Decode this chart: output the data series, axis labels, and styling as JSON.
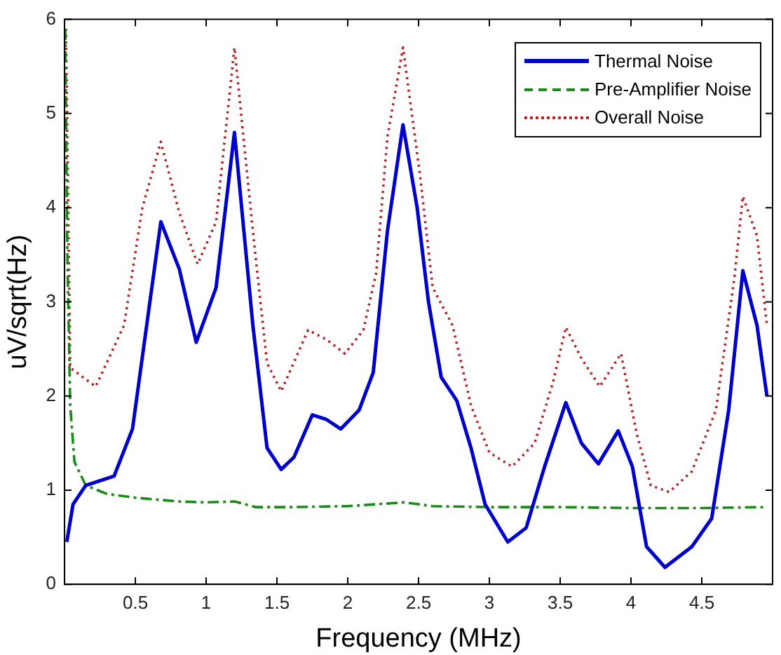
{
  "chart_data": {
    "type": "line",
    "xlabel": "Frequency (MHz)",
    "ylabel": "uV/sqrt(Hz)",
    "xlim": [
      0,
      5
    ],
    "xticks": [
      0.5,
      1,
      1.5,
      2,
      2.5,
      3,
      3.5,
      4,
      4.5
    ],
    "ylim": [
      0,
      6
    ],
    "yticks": [
      0,
      1,
      2,
      3,
      4,
      5,
      6
    ],
    "grid": false,
    "legend": "top right",
    "marker": "none",
    "series": [
      {
        "name": "Thermal Noise",
        "color": "#0000cc",
        "line_style": "solid",
        "x": [
          0.016,
          0.06,
          0.15,
          0.35,
          0.48,
          0.58,
          0.68,
          0.81,
          0.93,
          1.07,
          1.2,
          1.33,
          1.43,
          1.53,
          1.62,
          1.75,
          1.85,
          1.95,
          2.08,
          2.18,
          2.28,
          2.39,
          2.49,
          2.57,
          2.66,
          2.77,
          2.87,
          2.97,
          3.13,
          3.26,
          3.39,
          3.54,
          3.65,
          3.77,
          3.91,
          4.01,
          4.11,
          4.24,
          4.43,
          4.57,
          4.69,
          4.79,
          4.89,
          4.96
        ],
        "values": [
          0.45,
          0.85,
          1.05,
          1.15,
          1.65,
          2.75,
          3.85,
          3.35,
          2.57,
          3.15,
          4.8,
          2.75,
          1.45,
          1.22,
          1.35,
          1.8,
          1.75,
          1.65,
          1.85,
          2.25,
          3.75,
          4.88,
          4.0,
          3.0,
          2.2,
          1.95,
          1.45,
          0.85,
          0.45,
          0.6,
          1.25,
          1.93,
          1.5,
          1.28,
          1.63,
          1.25,
          0.4,
          0.18,
          0.4,
          0.7,
          1.85,
          3.33,
          2.75,
          2.0
        ]
      },
      {
        "name": "Pre-Amplifier Noise",
        "color": "#1a8a1a",
        "line_style": "dashed",
        "x": [
          0.005,
          0.02,
          0.04,
          0.07,
          0.15,
          0.3,
          0.5,
          0.8,
          1.0,
          1.2,
          1.35,
          1.6,
          2.0,
          2.4,
          2.6,
          3.0,
          3.5,
          4.0,
          4.5,
          4.96
        ],
        "values": [
          5.9,
          3.5,
          1.9,
          1.3,
          1.05,
          0.96,
          0.92,
          0.88,
          0.87,
          0.88,
          0.82,
          0.82,
          0.83,
          0.87,
          0.83,
          0.82,
          0.82,
          0.81,
          0.81,
          0.82
        ]
      },
      {
        "name": "Overall Noise",
        "color": "#b22222",
        "line_style": "dotted",
        "x": [
          0.01,
          0.04,
          0.22,
          0.42,
          0.55,
          0.68,
          0.81,
          0.94,
          1.07,
          1.2,
          1.33,
          1.43,
          1.53,
          1.72,
          1.85,
          1.98,
          2.11,
          2.2,
          2.28,
          2.39,
          2.51,
          2.6,
          2.74,
          2.87,
          3.0,
          3.16,
          3.32,
          3.45,
          3.54,
          3.65,
          3.78,
          3.93,
          4.04,
          4.14,
          4.27,
          4.43,
          4.6,
          4.73,
          4.79,
          4.89,
          4.96
        ],
        "values": [
          5.9,
          2.3,
          2.1,
          2.75,
          4.0,
          4.7,
          3.95,
          3.4,
          3.85,
          5.7,
          3.75,
          2.35,
          2.05,
          2.7,
          2.6,
          2.45,
          2.7,
          3.3,
          4.75,
          5.7,
          4.35,
          3.15,
          2.75,
          1.9,
          1.4,
          1.25,
          1.5,
          2.15,
          2.73,
          2.4,
          2.1,
          2.45,
          1.6,
          1.05,
          0.98,
          1.2,
          1.85,
          3.25,
          4.12,
          3.7,
          2.75
        ]
      }
    ]
  }
}
